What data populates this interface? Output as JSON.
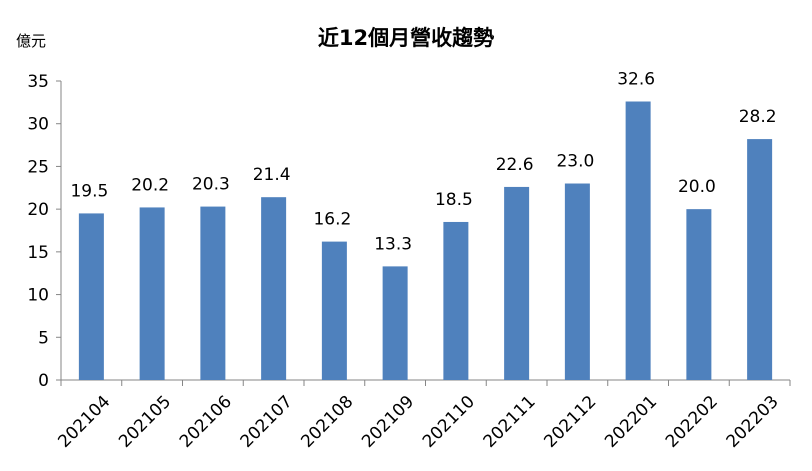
{
  "chart_data": {
    "type": "bar",
    "title": "近12個月營收趨勢",
    "ylabel": "億元",
    "xlabel": "",
    "ylim": [
      0,
      35
    ],
    "yticks": [
      0,
      5,
      10,
      15,
      20,
      25,
      30,
      35
    ],
    "grid": false,
    "legend": "none",
    "categories": [
      "202104",
      "202105",
      "202106",
      "202107",
      "202108",
      "202109",
      "202110",
      "202111",
      "202112",
      "202201",
      "202202",
      "202203"
    ],
    "values": [
      19.5,
      20.2,
      20.3,
      21.4,
      16.2,
      13.3,
      18.5,
      22.6,
      23.0,
      32.6,
      20.0,
      28.2
    ],
    "value_labels": [
      "19.5",
      "20.2",
      "20.3",
      "21.4",
      "16.2",
      "13.3",
      "18.5",
      "22.6",
      "23.0",
      "32.6",
      "20.0",
      "28.2"
    ],
    "bar_color": "#4F81BD"
  }
}
